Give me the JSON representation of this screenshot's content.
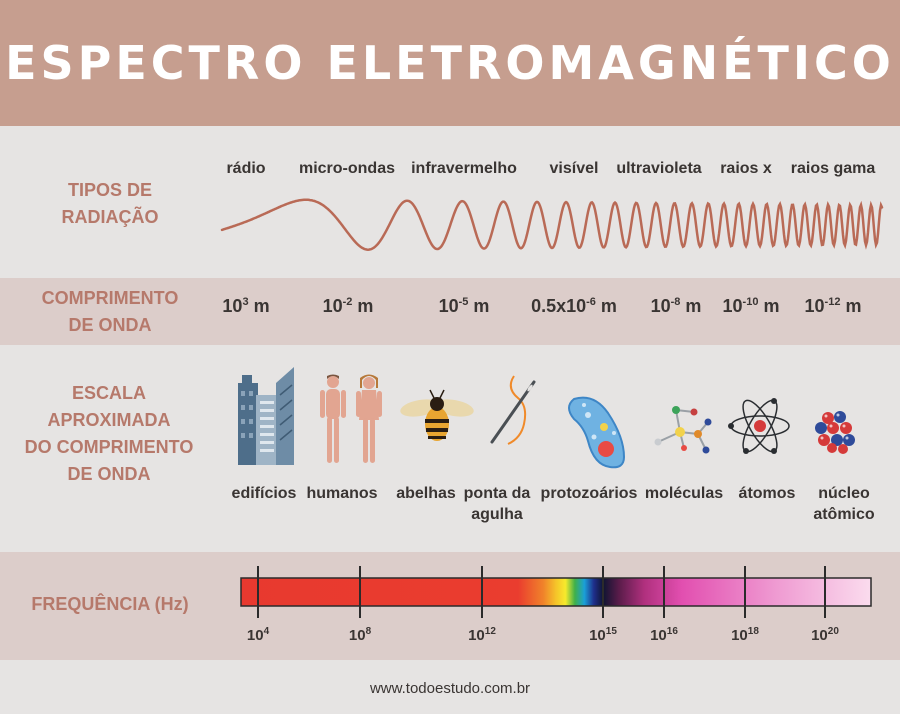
{
  "title": "ESPECTRO ELETROMAGNÉTICO",
  "rows": {
    "types_label_1": "TIPOS DE",
    "types_label_2": "RADIAÇÃO",
    "wavelength_label_1": "COMPRIMENTO",
    "wavelength_label_2": "DE ONDA",
    "scale_label_1": "ESCALA",
    "scale_label_2": "APROXIMADA",
    "scale_label_3": "DO COMPRIMENTO",
    "scale_label_4": "DE ONDA",
    "freq_label": "FREQUÊNCIA (Hz)"
  },
  "radiation_types": [
    "rádio",
    "micro-ondas",
    "infravermelho",
    "visível",
    "ultravioleta",
    "raios x",
    "raios gama"
  ],
  "wavelengths": [
    {
      "base": "10",
      "exp": "3",
      "unit": " m"
    },
    {
      "base": "10",
      "exp": "-2",
      "unit": " m"
    },
    {
      "base": "10",
      "exp": "-5",
      "unit": " m"
    },
    {
      "base": "0.5x10",
      "exp": "-6",
      "unit": " m"
    },
    {
      "base": "10",
      "exp": "-8",
      "unit": " m"
    },
    {
      "base": "10",
      "exp": "-10",
      "unit": " m"
    },
    {
      "base": "10",
      "exp": "-12",
      "unit": " m"
    }
  ],
  "scale_items": {
    "s1": "edifícios",
    "s2": "humanos",
    "s3": "abelhas",
    "s4a": "ponta da",
    "s4b": "agulha",
    "s5": "protozoários",
    "s6": "moléculas",
    "s7": "átomos",
    "s8a": "núcleo",
    "s8b": "atômico"
  },
  "frequencies": [
    {
      "base": "10",
      "exp": "4"
    },
    {
      "base": "10",
      "exp": "8"
    },
    {
      "base": "10",
      "exp": "12"
    },
    {
      "base": "10",
      "exp": "15"
    },
    {
      "base": "10",
      "exp": "16"
    },
    {
      "base": "10",
      "exp": "18"
    },
    {
      "base": "10",
      "exp": "20"
    }
  ],
  "footer": "www.todoestudo.com.br",
  "colors": {
    "header": "#c69e8f",
    "accent": "#b6796b",
    "wave": "#b96a56"
  }
}
